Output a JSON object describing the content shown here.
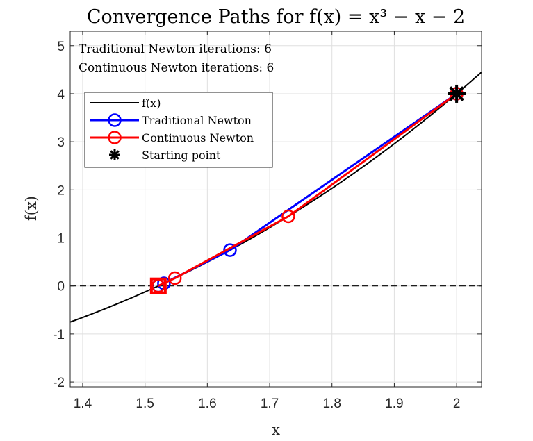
{
  "chart_data": {
    "type": "line",
    "title": "Convergence Paths for f(x) = x³ − x − 2",
    "xlabel": "x",
    "ylabel": "f(x)",
    "xlim": [
      1.38,
      2.04
    ],
    "ylim": [
      -2.1,
      5.3
    ],
    "x_ticks": [
      1.4,
      1.5,
      1.6,
      1.7,
      1.8,
      1.9,
      2
    ],
    "x_tick_labels": [
      "1.4",
      "1.5",
      "1.6",
      "1.7",
      "1.8",
      "1.9",
      "2"
    ],
    "y_ticks": [
      -2,
      -1,
      0,
      1,
      2,
      3,
      4,
      5
    ],
    "y_tick_labels": [
      "-2",
      "-1",
      "0",
      "1",
      "2",
      "3",
      "4",
      "5"
    ],
    "grid": true,
    "legend_position": "upper-left",
    "annotations": [
      "Traditional Newton iterations: 6",
      "Continuous Newton iterations: 6"
    ],
    "curve": {
      "name": "f(x)",
      "color": "#000000",
      "expression": "x^3 - x - 2"
    },
    "zero_line": {
      "y": 0,
      "style": "dashed",
      "color": "#000000"
    },
    "series": [
      {
        "name": "Traditional Newton",
        "color": "#0000ff",
        "marker": "circle",
        "points": [
          [
            2.0,
            4.0
          ],
          [
            1.6364,
            0.7455
          ],
          [
            1.5304,
            0.0541
          ],
          [
            1.5214,
            0.0004
          ],
          [
            1.5214,
            0.0
          ]
        ]
      },
      {
        "name": "Continuous Newton",
        "color": "#ff0000",
        "marker": "circle",
        "points": [
          [
            2.0,
            4.0
          ],
          [
            1.73,
            1.4477
          ],
          [
            1.548,
            0.1614
          ],
          [
            1.5214,
            0.0
          ]
        ]
      }
    ],
    "starting_point": {
      "name": "Starting point",
      "x": 2.0,
      "y": 4.0,
      "marker": "asterisk",
      "color": "#000000"
    },
    "final_point": {
      "x": 1.5214,
      "y": 0.0,
      "marker": "square",
      "color": "#ff0000"
    }
  }
}
